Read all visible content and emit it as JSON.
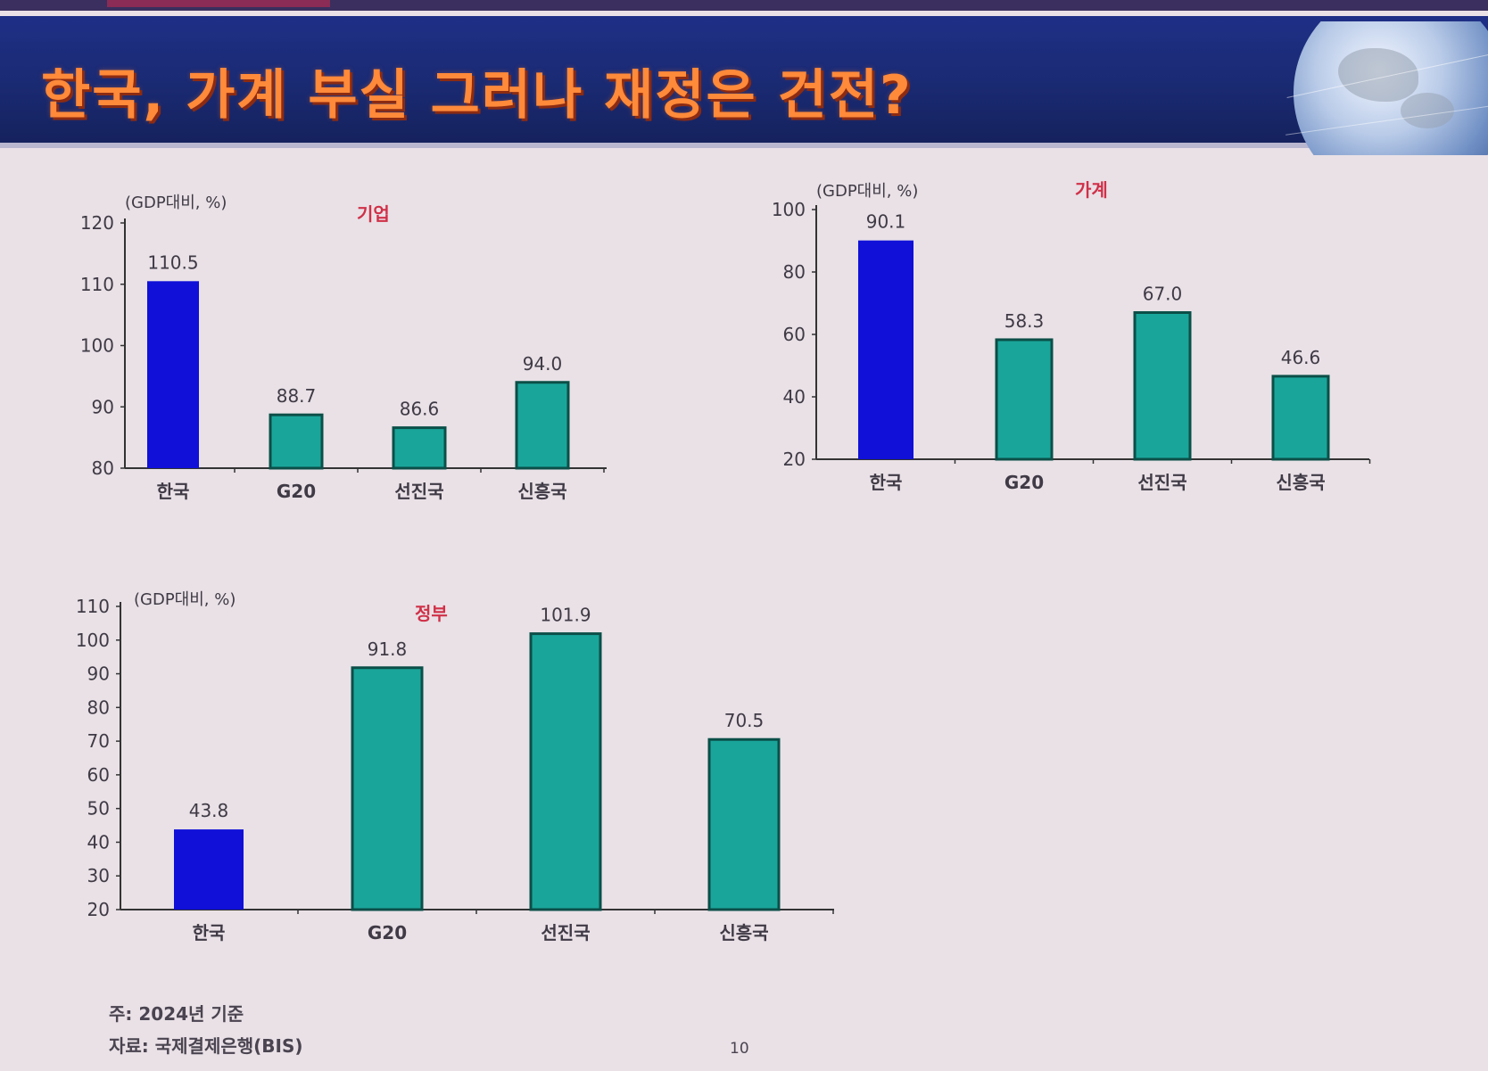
{
  "slide": {
    "title": "한국, 가계 부실 그러나 재정은 건전?",
    "note": "주: 2024년 기준",
    "source": "자료: 국제결제은행(BIS)",
    "page_number": "10"
  },
  "colors": {
    "korea_bar": "#1010d8",
    "other_bar": "#1aa59a",
    "label_red": "#d03048",
    "axis": "#333333",
    "text": "#3f3a45"
  },
  "chart_data": [
    {
      "type": "bar",
      "title": "기업",
      "unit_label": "(GDP대비, %)",
      "categories": [
        "한국",
        "G20",
        "선진국",
        "신흥국"
      ],
      "values": [
        110.5,
        88.7,
        86.6,
        94.0
      ],
      "value_labels": [
        "110.5",
        "88.7",
        "86.6",
        "94.0"
      ],
      "highlight_index": 0,
      "ylim": [
        80,
        120
      ],
      "yticks": [
        80,
        90,
        100,
        110,
        120
      ]
    },
    {
      "type": "bar",
      "title": "가계",
      "unit_label": "(GDP대비, %)",
      "categories": [
        "한국",
        "G20",
        "선진국",
        "신흥국"
      ],
      "values": [
        90.1,
        58.3,
        67.0,
        46.6
      ],
      "value_labels": [
        "90.1",
        "58.3",
        "67.0",
        "46.6"
      ],
      "highlight_index": 0,
      "ylim": [
        20,
        100
      ],
      "yticks": [
        20,
        40,
        60,
        80,
        100
      ]
    },
    {
      "type": "bar",
      "title": "정부",
      "unit_label": "(GDP대비, %)",
      "categories": [
        "한국",
        "G20",
        "선진국",
        "신흥국"
      ],
      "values": [
        43.8,
        91.8,
        101.9,
        70.5
      ],
      "value_labels": [
        "43.8",
        "91.8",
        "101.9",
        "70.5"
      ],
      "highlight_index": 0,
      "ylim": [
        20,
        110
      ],
      "yticks": [
        20,
        30,
        40,
        50,
        60,
        70,
        80,
        90,
        100,
        110
      ]
    }
  ]
}
